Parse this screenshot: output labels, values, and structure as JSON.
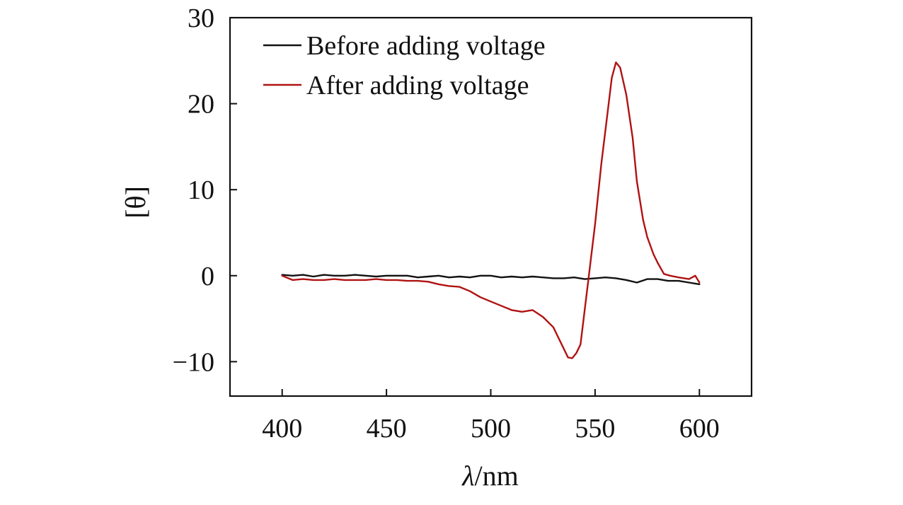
{
  "colors": {
    "before": "#111111",
    "after": "#b01212",
    "axis": "#111111",
    "background": "#ffffff"
  },
  "chart_data": {
    "type": "line",
    "title": "",
    "xlabel_symbol": "λ",
    "xlabel_unit": "/nm",
    "ylabel": "[θ]",
    "xlim": [
      375,
      625
    ],
    "ylim": [
      -14,
      30
    ],
    "xticks": [
      400,
      450,
      500,
      550,
      600
    ],
    "yticks": [
      -10,
      0,
      10,
      20,
      30
    ],
    "ytick_labels": [
      "−10",
      "0",
      "10",
      "20",
      "30"
    ],
    "grid": false,
    "legend_position": "top-left",
    "series": [
      {
        "name": "Before adding voltage",
        "color_key": "before",
        "x": [
          400,
          405,
          410,
          415,
          420,
          425,
          430,
          435,
          440,
          445,
          450,
          455,
          460,
          465,
          470,
          475,
          480,
          485,
          490,
          495,
          500,
          505,
          510,
          515,
          520,
          525,
          530,
          535,
          540,
          545,
          550,
          555,
          560,
          565,
          570,
          575,
          580,
          585,
          590,
          595,
          600
        ],
        "y": [
          0.1,
          0.0,
          0.1,
          -0.1,
          0.1,
          0.0,
          0.0,
          0.1,
          0.0,
          -0.1,
          0.0,
          0.0,
          0.0,
          -0.2,
          -0.1,
          0.0,
          -0.2,
          -0.1,
          -0.2,
          0.0,
          0.0,
          -0.2,
          -0.1,
          -0.2,
          -0.1,
          -0.2,
          -0.3,
          -0.3,
          -0.2,
          -0.4,
          -0.3,
          -0.2,
          -0.3,
          -0.5,
          -0.8,
          -0.4,
          -0.4,
          -0.6,
          -0.6,
          -0.8,
          -1.0
        ]
      },
      {
        "name": "After adding voltage",
        "color_key": "after",
        "x": [
          400,
          405,
          410,
          415,
          420,
          425,
          430,
          435,
          440,
          445,
          450,
          455,
          460,
          465,
          470,
          475,
          480,
          485,
          490,
          495,
          500,
          505,
          510,
          515,
          520,
          525,
          530,
          532,
          535,
          537,
          539,
          541,
          543,
          545,
          547,
          550,
          553,
          556,
          558,
          560,
          562,
          565,
          568,
          570,
          573,
          575,
          578,
          580,
          583,
          586,
          590,
          595,
          598,
          600
        ],
        "y": [
          0.0,
          -0.5,
          -0.4,
          -0.5,
          -0.5,
          -0.4,
          -0.5,
          -0.5,
          -0.5,
          -0.4,
          -0.5,
          -0.5,
          -0.6,
          -0.6,
          -0.7,
          -1.0,
          -1.2,
          -1.3,
          -1.8,
          -2.5,
          -3.0,
          -3.5,
          -4.0,
          -4.2,
          -4.0,
          -4.8,
          -6.0,
          -7.0,
          -8.5,
          -9.5,
          -9.6,
          -9.0,
          -8.0,
          -4.0,
          0.0,
          6.0,
          13.0,
          19.0,
          23.0,
          24.8,
          24.2,
          21.0,
          16.0,
          11.0,
          6.5,
          4.5,
          2.5,
          1.5,
          0.2,
          0.0,
          -0.2,
          -0.4,
          0.0,
          -0.8
        ]
      }
    ]
  }
}
